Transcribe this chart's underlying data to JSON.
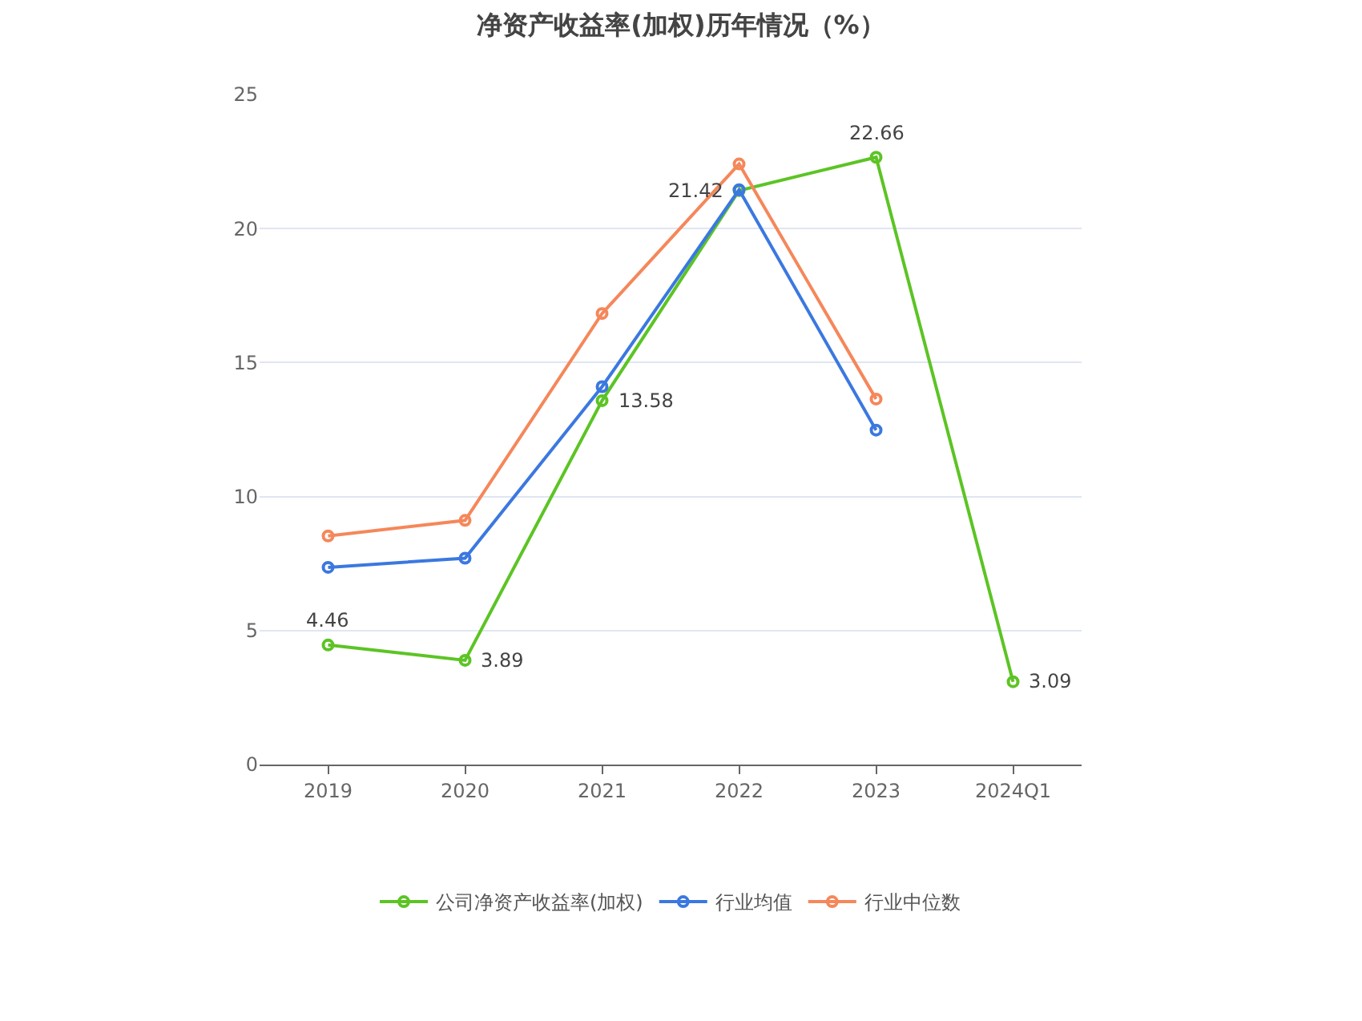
{
  "chart_data": {
    "type": "line",
    "title": "净资产收益率(加权)历年情况（%）",
    "categories": [
      "2019",
      "2020",
      "2021",
      "2022",
      "2023",
      "2024Q1"
    ],
    "series": [
      {
        "name": "公司净资产收益率(加权)",
        "color": "#5cc424",
        "values": [
          4.46,
          3.89,
          13.58,
          21.42,
          22.66,
          3.09
        ],
        "value_labels": [
          "4.46",
          "3.89",
          "13.58",
          "21.42",
          "22.66",
          "3.09"
        ]
      },
      {
        "name": "行业均值",
        "color": "#3b78e0",
        "values": [
          7.36,
          7.7,
          14.1,
          21.45,
          12.48,
          null
        ]
      },
      {
        "name": "行业中位数",
        "color": "#f5875a",
        "values": [
          8.53,
          9.11,
          16.83,
          22.41,
          13.64,
          null
        ]
      }
    ],
    "ylim": [
      0,
      25
    ],
    "yticks": [
      0,
      5,
      10,
      15,
      20,
      25
    ],
    "grid": "y",
    "legend": "bottom",
    "marker": "circle",
    "line_style": "solid"
  }
}
